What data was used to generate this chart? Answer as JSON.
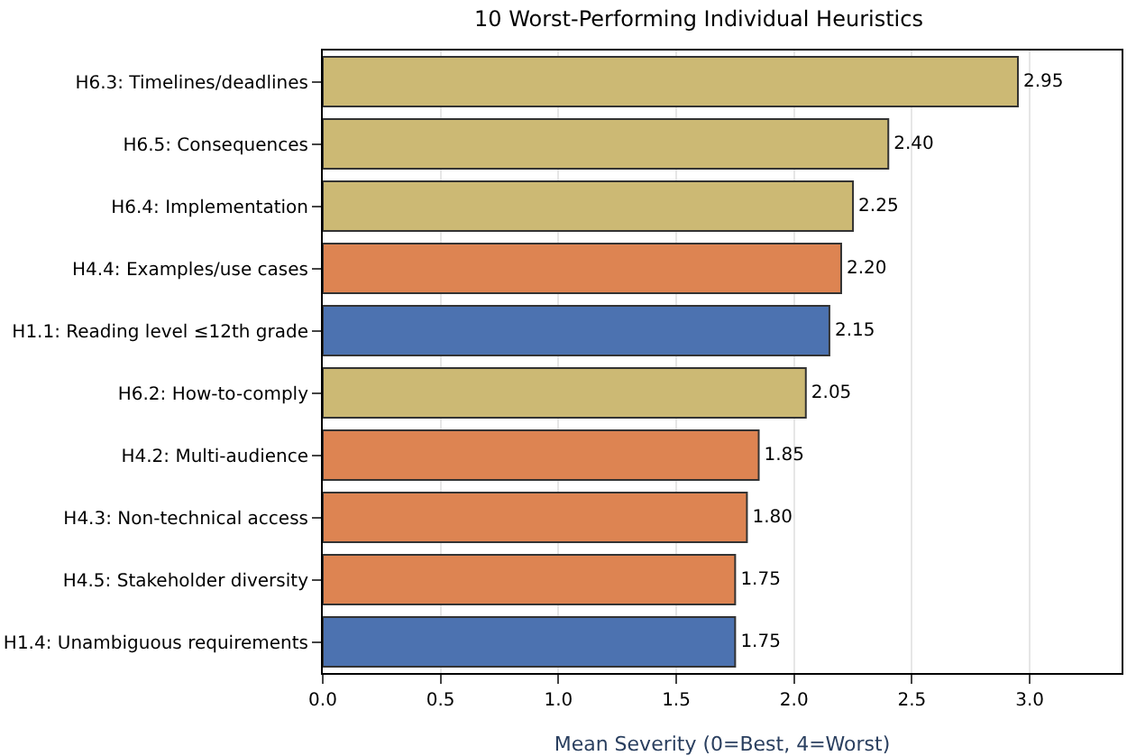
{
  "chart_data": {
    "type": "bar",
    "orientation": "horizontal",
    "title": "10 Worst-Performing Individual Heuristics",
    "xlabel": "Mean Severity (0=Best, 4=Worst)",
    "categories": [
      "H6.3: Timelines/deadlines",
      "H6.5: Consequences",
      "H6.4: Implementation",
      "H4.4: Examples/use cases",
      "H1.1: Reading level ≤12th grade",
      "H6.2: How-to-comply",
      "H4.2: Multi-audience",
      "H4.3: Non-technical access",
      "H4.5: Stakeholder diversity",
      "H1.4: Unambiguous requirements"
    ],
    "values": [
      2.95,
      2.4,
      2.25,
      2.2,
      2.15,
      2.05,
      1.85,
      1.8,
      1.75,
      1.75
    ],
    "value_labels": [
      "2.95",
      "2.40",
      "2.25",
      "2.20",
      "2.15",
      "2.05",
      "1.85",
      "1.80",
      "1.75",
      "1.75"
    ],
    "colors": [
      "#ccb974",
      "#ccb974",
      "#ccb974",
      "#dd8452",
      "#4c72b0",
      "#ccb974",
      "#dd8452",
      "#dd8452",
      "#dd8452",
      "#4c72b0"
    ],
    "xlim": [
      0,
      3.39
    ],
    "xticks": [
      {
        "value": 0,
        "label": "0.0"
      },
      0.5,
      {
        "value": 1,
        "label": "1.0"
      },
      1.5,
      {
        "value": 2,
        "label": "2.0"
      },
      2.5,
      {
        "value": 3,
        "label": "3.0"
      }
    ],
    "grid": "x"
  }
}
